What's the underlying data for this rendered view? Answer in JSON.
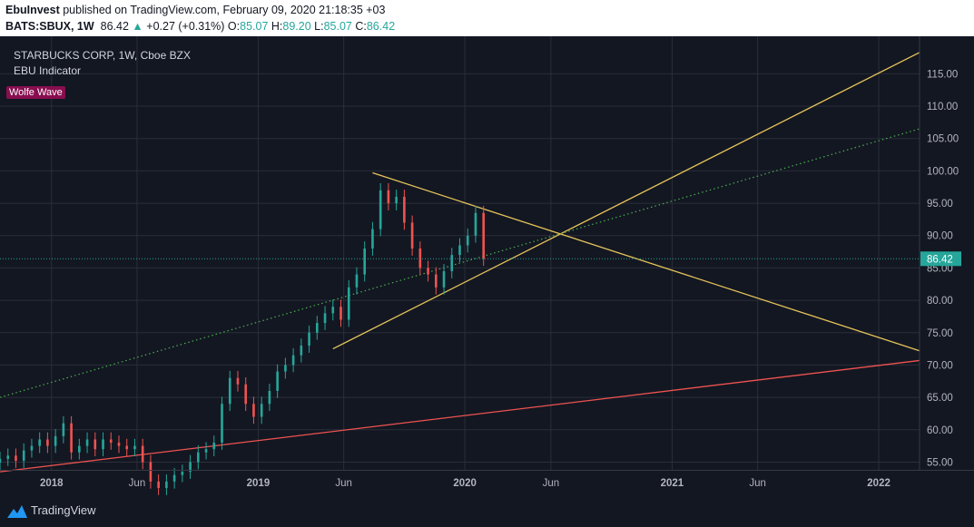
{
  "header": {
    "author": "EbuInvest",
    "published_text": " published on TradingView.com, February 09, 2020 21:18:35 +03",
    "symbol": "BATS:SBUX, 1W",
    "last": "86.42",
    "change_arrow": "▲",
    "change": "+0.27 (+0.31%)",
    "o_label": "O:",
    "o_value": "85.07",
    "h_label": "H:",
    "h_value": "89.20",
    "l_label": "L:",
    "l_value": "85.07",
    "c_label": "C:",
    "c_value": "86.42"
  },
  "legend": {
    "title": "STARBUCKS CORP, 1W, Cboe BZX",
    "indicator": "EBU Indicator",
    "pattern_tag": "Wolfe Wave"
  },
  "footer": {
    "brand": "TradingView"
  },
  "colors": {
    "background": "#131722",
    "up": "#26a69a",
    "down": "#ef5350",
    "trendline": "#e6c45a",
    "ma_line": "#ef5350",
    "dotted_line": "#4caf50",
    "price_line": "#26a69a",
    "grid": "#2a2e39",
    "wolfe_tag": "#880e4f"
  },
  "chart_data": {
    "type": "candlestick",
    "y_ticks": [
      55,
      60,
      65,
      70,
      75,
      80,
      85,
      90,
      95,
      100,
      105,
      110,
      115
    ],
    "ylim": [
      53.8,
      120.8
    ],
    "x_range": [
      "2017-10-02",
      "2022-03-14"
    ],
    "x_ticks": [
      {
        "date": "2018-01-01",
        "label": "2018",
        "bold": true
      },
      {
        "date": "2018-06-01",
        "label": "Jun",
        "bold": false
      },
      {
        "date": "2019-01-01",
        "label": "2019",
        "bold": true
      },
      {
        "date": "2019-06-01",
        "label": "Jun",
        "bold": false
      },
      {
        "date": "2020-01-01",
        "label": "2020",
        "bold": true
      },
      {
        "date": "2020-06-01",
        "label": "Jun",
        "bold": false
      },
      {
        "date": "2021-01-01",
        "label": "2021",
        "bold": true
      },
      {
        "date": "2021-06-01",
        "label": "Jun",
        "bold": false
      },
      {
        "date": "2022-01-01",
        "label": "2022",
        "bold": true
      }
    ],
    "current_price": 86.42,
    "current_price_label": "86.42",
    "closes": [
      [
        "2017-10-02",
        55.5
      ],
      [
        "2017-10-16",
        56.0
      ],
      [
        "2017-10-30",
        55.2
      ],
      [
        "2017-11-13",
        56.8
      ],
      [
        "2017-11-27",
        57.5
      ],
      [
        "2017-12-11",
        58.5
      ],
      [
        "2017-12-25",
        57.5
      ],
      [
        "2018-01-08",
        59.0
      ],
      [
        "2018-01-22",
        61.0
      ],
      [
        "2018-02-05",
        56.5
      ],
      [
        "2018-02-19",
        57.5
      ],
      [
        "2018-03-05",
        58.5
      ],
      [
        "2018-03-19",
        57.0
      ],
      [
        "2018-04-02",
        58.5
      ],
      [
        "2018-04-16",
        58.0
      ],
      [
        "2018-04-30",
        57.5
      ],
      [
        "2018-05-14",
        57.0
      ],
      [
        "2018-05-28",
        57.5
      ],
      [
        "2018-06-11",
        55.0
      ],
      [
        "2018-06-25",
        52.0
      ],
      [
        "2018-07-09",
        51.0
      ],
      [
        "2018-07-23",
        52.0
      ],
      [
        "2018-08-06",
        53.0
      ],
      [
        "2018-08-20",
        53.5
      ],
      [
        "2018-09-03",
        55.0
      ],
      [
        "2018-09-17",
        56.5
      ],
      [
        "2018-10-01",
        57.0
      ],
      [
        "2018-10-15",
        58.0
      ],
      [
        "2018-10-29",
        64.0
      ],
      [
        "2018-11-12",
        68.0
      ],
      [
        "2018-11-26",
        67.0
      ],
      [
        "2018-12-10",
        64.0
      ],
      [
        "2018-12-24",
        62.0
      ],
      [
        "2019-01-07",
        64.0
      ],
      [
        "2019-01-21",
        66.0
      ],
      [
        "2019-02-04",
        69.0
      ],
      [
        "2019-02-18",
        70.0
      ],
      [
        "2019-03-04",
        71.5
      ],
      [
        "2019-03-18",
        73.0
      ],
      [
        "2019-04-01",
        75.0
      ],
      [
        "2019-04-15",
        76.5
      ],
      [
        "2019-04-29",
        78.0
      ],
      [
        "2019-05-13",
        79.0
      ],
      [
        "2019-05-27",
        77.0
      ],
      [
        "2019-06-10",
        82.0
      ],
      [
        "2019-06-24",
        84.0
      ],
      [
        "2019-07-08",
        88.0
      ],
      [
        "2019-07-22",
        91.0
      ],
      [
        "2019-08-05",
        97.0
      ],
      [
        "2019-08-19",
        95.0
      ],
      [
        "2019-09-02",
        96.0
      ],
      [
        "2019-09-16",
        92.0
      ],
      [
        "2019-09-30",
        88.0
      ],
      [
        "2019-10-14",
        85.0
      ],
      [
        "2019-10-28",
        84.0
      ],
      [
        "2019-11-11",
        82.0
      ],
      [
        "2019-11-25",
        84.5
      ],
      [
        "2019-12-09",
        87.0
      ],
      [
        "2019-12-23",
        88.5
      ],
      [
        "2020-01-06",
        90.0
      ],
      [
        "2020-01-20",
        93.5
      ],
      [
        "2020-02-03",
        86.42
      ]
    ],
    "trendlines": [
      {
        "name": "",
        "from": [
          "2019-07-22",
          99.7
        ],
        "to": [
          "2022-03-14",
          72.2
        ],
        "color": "#e6c45a"
      },
      {
        "name": "",
        "from": [
          "2019-05-13",
          72.5
        ],
        "to": [
          "2022-03-14",
          118.3
        ],
        "color": "#e6c45a"
      },
      {
        "name": "",
        "from": [
          "2017-10-02",
          53.5
        ],
        "to": [
          "2022-03-14",
          70.7
        ],
        "color": "#ef5350"
      },
      {
        "name": "",
        "from": [
          "2017-10-02",
          65.0
        ],
        "to": [
          "2022-03-14",
          106.5
        ],
        "color": "#4caf50",
        "dotted": true
      }
    ]
  }
}
